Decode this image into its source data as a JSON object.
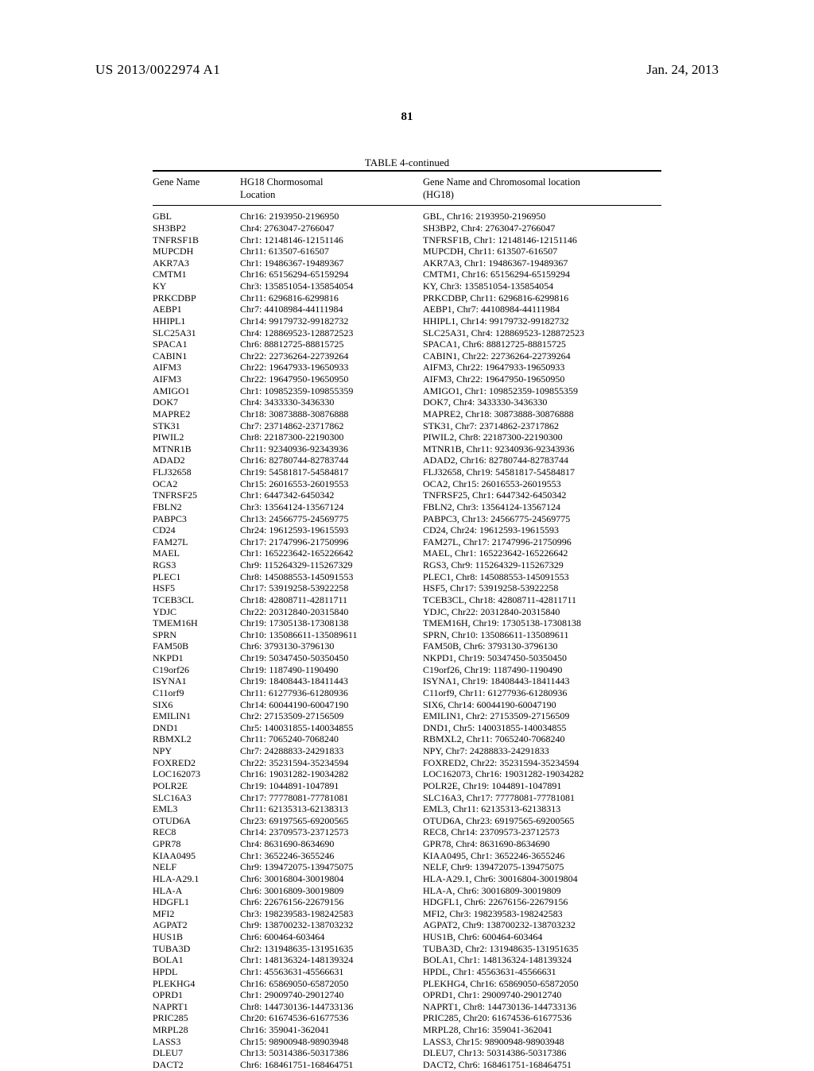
{
  "header": {
    "publication_number": "US 2013/0022974 A1",
    "publication_date": "Jan. 24, 2013",
    "page_number": "81"
  },
  "table": {
    "caption": "TABLE 4-continued",
    "columns": [
      {
        "line1": "Gene Name",
        "line2": ""
      },
      {
        "line1": "HG18 Chormosomal",
        "line2": "Location"
      },
      {
        "line1": "Gene Name and Chromosomal location",
        "line2": "(HG18)"
      }
    ],
    "rows": [
      [
        "GBL",
        "Chr16: 2193950-2196950",
        "GBL, Chr16: 2193950-2196950"
      ],
      [
        "SH3BP2",
        "Chr4: 2763047-2766047",
        "SH3BP2, Chr4: 2763047-2766047"
      ],
      [
        "TNFRSF1B",
        "Chr1: 12148146-12151146",
        "TNFRSF1B, Chr1: 12148146-12151146"
      ],
      [
        "MUPCDH",
        "Chr11: 613507-616507",
        "MUPCDH, Chr11: 613507-616507"
      ],
      [
        "AKR7A3",
        "Chr1: 19486367-19489367",
        "AKR7A3, Chr1: 19486367-19489367"
      ],
      [
        "CMTM1",
        "Chr16: 65156294-65159294",
        "CMTM1, Chr16: 65156294-65159294"
      ],
      [
        "KY",
        "Chr3: 135851054-135854054",
        "KY, Chr3: 135851054-135854054"
      ],
      [
        "PRKCDBP",
        "Chr11: 6296816-6299816",
        "PRKCDBP, Chr11: 6296816-6299816"
      ],
      [
        "AEBP1",
        "Chr7: 44108984-44111984",
        "AEBP1, Chr7: 44108984-44111984"
      ],
      [
        "HHIPL1",
        "Chr14: 99179732-99182732",
        "HHIPL1, Chr14: 99179732-99182732"
      ],
      [
        "SLC25A31",
        "Chr4: 128869523-128872523",
        "SLC25A31, Chr4: 128869523-128872523"
      ],
      [
        "SPACA1",
        "Chr6: 88812725-88815725",
        "SPACA1, Chr6: 88812725-88815725"
      ],
      [
        "CABIN1",
        "Chr22: 22736264-22739264",
        "CABIN1, Chr22: 22736264-22739264"
      ],
      [
        "AIFM3",
        "Chr22: 19647933-19650933",
        "AIFM3, Chr22: 19647933-19650933"
      ],
      [
        "AIFM3",
        "Chr22: 19647950-19650950",
        "AIFM3, Chr22: 19647950-19650950"
      ],
      [
        "AMIGO1",
        "Chr1: 109852359-109855359",
        "AMIGO1, Chr1: 109852359-109855359"
      ],
      [
        "DOK7",
        "Chr4: 3433330-3436330",
        "DOK7, Chr4: 3433330-3436330"
      ],
      [
        "MAPRE2",
        "Chr18: 30873888-30876888",
        "MAPRE2, Chr18: 30873888-30876888"
      ],
      [
        "STK31",
        "Chr7: 23714862-23717862",
        "STK31, Chr7: 23714862-23717862"
      ],
      [
        "PIWIL2",
        "Chr8: 22187300-22190300",
        "PIWIL2, Chr8: 22187300-22190300"
      ],
      [
        "MTNR1B",
        "Chr11: 92340936-92343936",
        "MTNR1B, Chr11: 92340936-92343936"
      ],
      [
        "ADAD2",
        "Chr16: 82780744-82783744",
        "ADAD2, Chr16: 82780744-82783744"
      ],
      [
        "FLJ32658",
        "Chr19: 54581817-54584817",
        "FLJ32658, Chr19: 54581817-54584817"
      ],
      [
        "OCA2",
        "Chr15: 26016553-26019553",
        "OCA2, Chr15: 26016553-26019553"
      ],
      [
        "TNFRSF25",
        "Chr1: 6447342-6450342",
        "TNFRSF25, Chr1: 6447342-6450342"
      ],
      [
        "FBLN2",
        "Chr3: 13564124-13567124",
        "FBLN2, Chr3: 13564124-13567124"
      ],
      [
        "PABPC3",
        "Chr13: 24566775-24569775",
        "PABPC3, Chr13: 24566775-24569775"
      ],
      [
        "CD24",
        "Chr24: 19612593-19615593",
        "CD24, Chr24: 19612593-19615593"
      ],
      [
        "FAM27L",
        "Chr17: 21747996-21750996",
        "FAM27L, Chr17: 21747996-21750996"
      ],
      [
        "MAEL",
        "Chr1: 165223642-165226642",
        "MAEL, Chr1: 165223642-165226642"
      ],
      [
        "RGS3",
        "Chr9: 115264329-115267329",
        "RGS3, Chr9: 115264329-115267329"
      ],
      [
        "PLEC1",
        "Chr8: 145088553-145091553",
        "PLEC1, Chr8: 145088553-145091553"
      ],
      [
        "HSF5",
        "Chr17: 53919258-53922258",
        "HSF5, Chr17: 53919258-53922258"
      ],
      [
        "TCEB3CL",
        "Chr18: 42808711-42811711",
        "TCEB3CL, Chr18: 42808711-42811711"
      ],
      [
        "YDJC",
        "Chr22: 20312840-20315840",
        "YDJC, Chr22: 20312840-20315840"
      ],
      [
        "TMEM16H",
        "Chr19: 17305138-17308138",
        "TMEM16H, Chr19: 17305138-17308138"
      ],
      [
        "SPRN",
        "Chr10: 135086611-135089611",
        "SPRN, Chr10: 135086611-135089611"
      ],
      [
        "FAM50B",
        "Chr6: 3793130-3796130",
        "FAM50B, Chr6: 3793130-3796130"
      ],
      [
        "NKPD1",
        "Chr19: 50347450-50350450",
        "NKPD1, Chr19: 50347450-50350450"
      ],
      [
        "C19orf26",
        "Chr19: 1187490-1190490",
        "C19orf26, Chr19: 1187490-1190490"
      ],
      [
        "ISYNA1",
        "Chr19: 18408443-18411443",
        "ISYNA1, Chr19: 18408443-18411443"
      ],
      [
        "C11orf9",
        "Chr11: 61277936-61280936",
        "C11orf9, Chr11: 61277936-61280936"
      ],
      [
        "SIX6",
        "Chr14: 60044190-60047190",
        "SIX6, Chr14: 60044190-60047190"
      ],
      [
        "EMILIN1",
        "Chr2: 27153509-27156509",
        "EMILIN1, Chr2: 27153509-27156509"
      ],
      [
        "DND1",
        "Chr5: 140031855-140034855",
        "DND1, Chr5: 140031855-140034855"
      ],
      [
        "RBMXL2",
        "Chr11: 7065240-7068240",
        "RBMXL2, Chr11: 7065240-7068240"
      ],
      [
        "NPY",
        "Chr7: 24288833-24291833",
        "NPY, Chr7: 24288833-24291833"
      ],
      [
        "FOXRED2",
        "Chr22: 35231594-35234594",
        "FOXRED2, Chr22: 35231594-35234594"
      ],
      [
        "LOC162073",
        "Chr16: 19031282-19034282",
        "LOC162073, Chr16: 19031282-19034282"
      ],
      [
        "POLR2E",
        "Chr19: 1044891-1047891",
        "POLR2E, Chr19: 1044891-1047891"
      ],
      [
        "SLC16A3",
        "Chr17: 77778081-77781081",
        "SLC16A3, Chr17: 77778081-77781081"
      ],
      [
        "EML3",
        "Chr11: 62135313-62138313",
        "EML3, Chr11: 62135313-62138313"
      ],
      [
        "OTUD6A",
        "Chr23: 69197565-69200565",
        "OTUD6A, Chr23: 69197565-69200565"
      ],
      [
        "REC8",
        "Chr14: 23709573-23712573",
        "REC8, Chr14: 23709573-23712573"
      ],
      [
        "GPR78",
        "Chr4: 8631690-8634690",
        "GPR78, Chr4: 8631690-8634690"
      ],
      [
        "KIAA0495",
        "Chr1: 3652246-3655246",
        "KIAA0495, Chr1: 3652246-3655246"
      ],
      [
        "NELF",
        "Chr9: 139472075-139475075",
        "NELF, Chr9: 139472075-139475075"
      ],
      [
        "HLA-A29.1",
        "Chr6: 30016804-30019804",
        "HLA-A29.1, Chr6: 30016804-30019804"
      ],
      [
        "HLA-A",
        "Chr6: 30016809-30019809",
        "HLA-A, Chr6: 30016809-30019809"
      ],
      [
        "HDGFL1",
        "Chr6: 22676156-22679156",
        "HDGFL1, Chr6: 22676156-22679156"
      ],
      [
        "MFI2",
        "Chr3: 198239583-198242583",
        "MFI2, Chr3: 198239583-198242583"
      ],
      [
        "AGPAT2",
        "Chr9: 138700232-138703232",
        "AGPAT2, Chr9: 138700232-138703232"
      ],
      [
        "HUS1B",
        "Chr6: 600464-603464",
        "HUS1B, Chr6: 600464-603464"
      ],
      [
        "TUBA3D",
        "Chr2: 131948635-131951635",
        "TUBA3D, Chr2: 131948635-131951635"
      ],
      [
        "BOLA1",
        "Chr1: 148136324-148139324",
        "BOLA1, Chr1: 148136324-148139324"
      ],
      [
        "HPDL",
        "Chr1: 45563631-45566631",
        "HPDL, Chr1: 45563631-45566631"
      ],
      [
        "PLEKHG4",
        "Chr16: 65869050-65872050",
        "PLEKHG4, Chr16: 65869050-65872050"
      ],
      [
        "OPRD1",
        "Chr1: 29009740-29012740",
        "OPRD1, Chr1: 29009740-29012740"
      ],
      [
        "NAPRT1",
        "Chr8: 144730136-144733136",
        "NAPRT1, Chr8: 144730136-144733136"
      ],
      [
        "PRIC285",
        "Chr20: 61674536-61677536",
        "PRIC285, Chr20: 61674536-61677536"
      ],
      [
        "MRPL28",
        "Chr16: 359041-362041",
        "MRPL28, Chr16: 359041-362041"
      ],
      [
        "LASS3",
        "Chr15: 98900948-98903948",
        "LASS3, Chr15: 98900948-98903948"
      ],
      [
        "DLEU7",
        "Chr13: 50314386-50317386",
        "DLEU7, Chr13: 50314386-50317386"
      ],
      [
        "DACT2",
        "Chr6: 168461751-168464751",
        "DACT2, Chr6: 168461751-168464751"
      ]
    ]
  }
}
